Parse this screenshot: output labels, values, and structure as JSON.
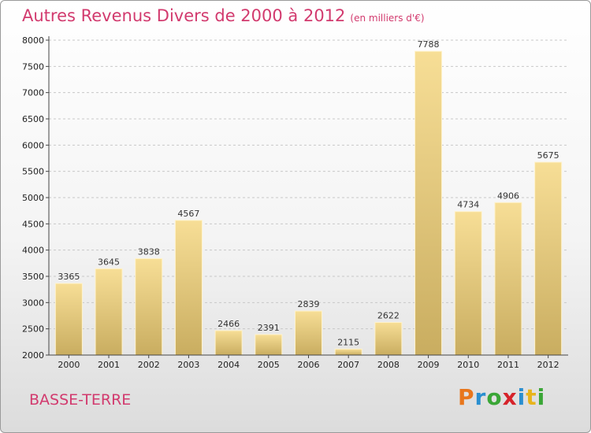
{
  "chart_data": {
    "type": "bar",
    "title": "Autres Revenus Divers de 2000 à 2012",
    "subtitle": "(en milliers d'€)",
    "categories": [
      "2000",
      "2001",
      "2002",
      "2003",
      "2004",
      "2005",
      "2006",
      "2007",
      "2008",
      "2009",
      "2010",
      "2011",
      "2012"
    ],
    "values": [
      3365,
      3645,
      3838,
      4567,
      2466,
      2391,
      2839,
      2115,
      2622,
      7788,
      4734,
      4906,
      5675
    ],
    "ylim": [
      2000,
      8000
    ],
    "yticks": [
      2000,
      2500,
      3000,
      3500,
      4000,
      4500,
      5000,
      5500,
      6000,
      6500,
      7000,
      7500,
      8000
    ],
    "grid": "horizontal dashed",
    "bar_color": "#e8cf8a"
  },
  "footer": {
    "city": "BASSE-TERRE",
    "logo": "Proxiti"
  },
  "colors": {
    "title": "#d23a6e",
    "logo_letters": [
      "#e8761c",
      "#2a8fd0",
      "#3aa636",
      "#d6232a",
      "#2a8fd0",
      "#e8b41c",
      "#3aa636"
    ]
  }
}
